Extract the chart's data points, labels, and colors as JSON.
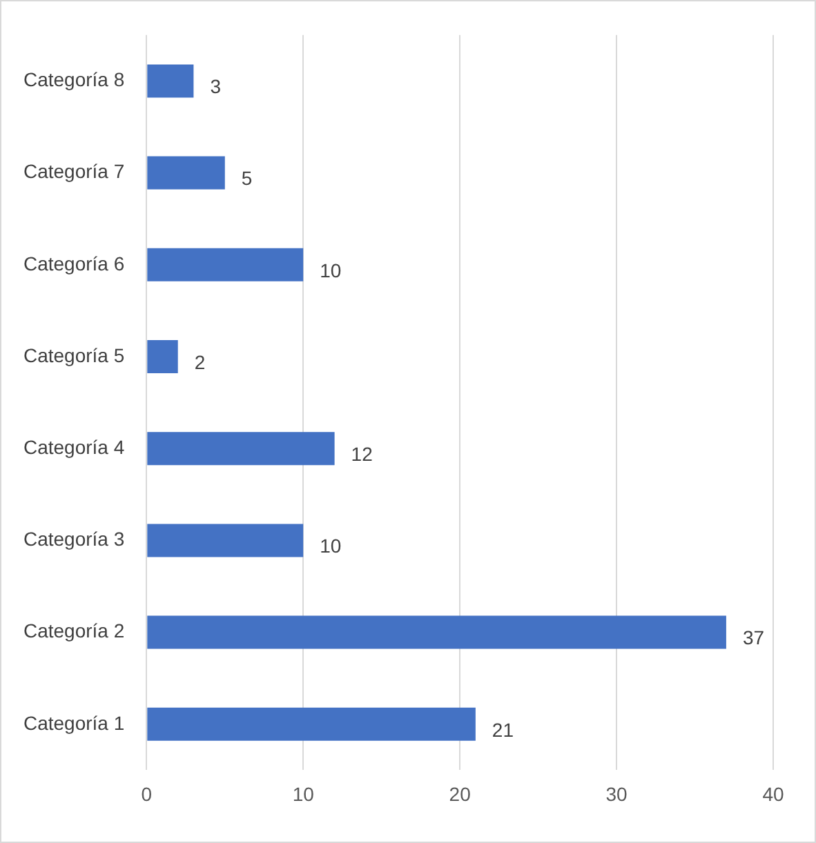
{
  "chart_data": {
    "type": "bar",
    "orientation": "horizontal",
    "categories": [
      "Categoría 8",
      "Categoría 7",
      "Categoría 6",
      "Categoría 5",
      "Categoría 4",
      "Categoría 3",
      "Categoría 2",
      "Categoría 1"
    ],
    "values": [
      3,
      5,
      10,
      2,
      12,
      10,
      37,
      21
    ],
    "color": "#4472c4",
    "xlim": [
      0,
      40
    ],
    "xticks": [
      0,
      10,
      20,
      30,
      40
    ],
    "grid": "x",
    "data_labels": true,
    "legend": false
  }
}
